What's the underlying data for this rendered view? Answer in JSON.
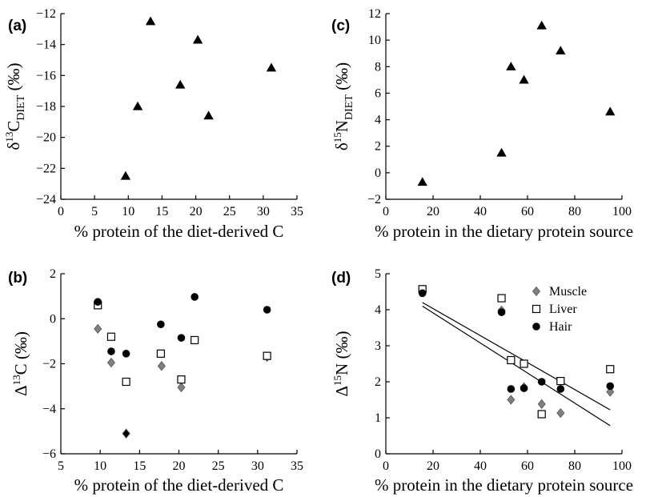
{
  "chart_data": [
    {
      "panel": "(a)",
      "type": "scatter",
      "xlabel": "% protein of the diet-derived C",
      "ylabel_parts": [
        "δ",
        "13",
        "C",
        "DIET",
        " (‰)"
      ],
      "xlim": [
        0,
        35
      ],
      "ylim": [
        -24,
        -12
      ],
      "xticks": [
        0,
        5,
        10,
        15,
        20,
        25,
        30,
        35
      ],
      "yticks": [
        -24,
        -22,
        -20,
        -18,
        -16,
        -14,
        -12
      ],
      "series": [
        {
          "marker": "triangle",
          "color": "#000000",
          "points": [
            [
              9.6,
              -22.5
            ],
            [
              11.4,
              -18.0
            ],
            [
              13.3,
              -12.5
            ],
            [
              17.7,
              -16.6
            ],
            [
              20.3,
              -13.7
            ],
            [
              21.9,
              -18.6
            ],
            [
              31.2,
              -15.5
            ]
          ]
        }
      ]
    },
    {
      "panel": "(b)",
      "type": "scatter",
      "xlabel": "% protein of the diet-derived C",
      "ylabel_parts": [
        "Δ",
        "13",
        "C",
        "",
        " (‰)"
      ],
      "xlim": [
        5,
        35
      ],
      "ylim": [
        -6,
        2
      ],
      "xticks": [
        5,
        10,
        15,
        20,
        25,
        30,
        35
      ],
      "yticks": [
        -6,
        -4,
        -2,
        0,
        2
      ],
      "series": [
        {
          "marker": "diamond",
          "color": "#808080",
          "points": [
            [
              9.7,
              -0.45
            ],
            [
              11.4,
              -1.95
            ],
            [
              17.8,
              -2.1
            ],
            [
              20.3,
              -3.05
            ],
            [
              13.3,
              -5.1
            ],
            [
              31.2,
              -1.7
            ]
          ]
        },
        {
          "marker": "square",
          "points": [
            [
              9.7,
              0.6
            ],
            [
              11.4,
              -0.8
            ],
            [
              13.3,
              -2.8
            ],
            [
              17.7,
              -1.55
            ],
            [
              20.3,
              -2.7
            ],
            [
              22.0,
              -0.95
            ],
            [
              31.2,
              -1.65
            ]
          ]
        },
        {
          "marker": "circle",
          "color": "#000000",
          "points": [
            [
              9.7,
              0.75
            ],
            [
              11.4,
              -1.45
            ],
            [
              13.3,
              -1.55
            ],
            [
              17.7,
              -0.25
            ],
            [
              20.3,
              -0.85
            ],
            [
              22.0,
              0.97
            ],
            [
              31.2,
              0.4
            ]
          ]
        }
      ],
      "extra_points": [
        {
          "marker": "diamond",
          "color": "#000000",
          "x": 13.3,
          "y": -5.1
        }
      ]
    },
    {
      "panel": "(c)",
      "type": "scatter",
      "xlabel": "% protein in the dietary protein source",
      "ylabel_parts": [
        "δ",
        "15",
        "N",
        "DIET",
        " (‰)"
      ],
      "xlim": [
        0,
        100
      ],
      "ylim": [
        -2,
        12
      ],
      "xticks": [
        0,
        20,
        40,
        60,
        80,
        100
      ],
      "yticks": [
        -2,
        0,
        2,
        4,
        6,
        8,
        10,
        12
      ],
      "series": [
        {
          "marker": "triangle",
          "color": "#000000",
          "points": [
            [
              15.5,
              -0.7
            ],
            [
              49.0,
              1.5
            ],
            [
              53.0,
              8.0
            ],
            [
              58.5,
              7.0
            ],
            [
              66.0,
              11.1
            ],
            [
              74.0,
              9.2
            ],
            [
              95.0,
              4.6
            ]
          ]
        }
      ]
    },
    {
      "panel": "(d)",
      "type": "scatter",
      "xlabel": "% protein in the dietary protein source",
      "ylabel_parts": [
        "Δ",
        "15",
        "N",
        "",
        " (‰)"
      ],
      "xlim": [
        0,
        100
      ],
      "ylim": [
        0,
        5
      ],
      "xticks": [
        0,
        20,
        40,
        60,
        80,
        100
      ],
      "yticks": [
        0,
        1,
        2,
        3,
        4,
        5
      ],
      "series": [
        {
          "name": "Muscle",
          "marker": "diamond",
          "color": "#808080",
          "points": [
            [
              15.5,
              4.52
            ],
            [
              49.0,
              3.98
            ],
            [
              53.0,
              1.5
            ],
            [
              58.5,
              1.85
            ],
            [
              66.0,
              1.38
            ],
            [
              74.0,
              1.13
            ],
            [
              95.0,
              1.72
            ]
          ]
        },
        {
          "name": "Liver",
          "marker": "square",
          "points": [
            [
              15.5,
              4.57
            ],
            [
              49.0,
              4.32
            ],
            [
              53.0,
              2.6
            ],
            [
              58.5,
              2.5
            ],
            [
              66.0,
              1.1
            ],
            [
              74.0,
              2.02
            ],
            [
              95.0,
              2.35
            ]
          ]
        },
        {
          "name": "Hair",
          "marker": "circle",
          "color": "#000000",
          "points": [
            [
              15.5,
              4.46
            ],
            [
              49.0,
              3.93
            ],
            [
              53.0,
              1.8
            ],
            [
              58.5,
              1.82
            ],
            [
              66.0,
              2.0
            ],
            [
              74.0,
              1.8
            ],
            [
              95.0,
              1.88
            ]
          ]
        }
      ],
      "trendlines": [
        {
          "x": [
            15.5,
            95.0
          ],
          "y": [
            4.2,
            1.22
          ]
        },
        {
          "x": [
            15.5,
            95.0
          ],
          "y": [
            4.1,
            0.78
          ]
        }
      ],
      "legend": {
        "position": "top-right"
      }
    }
  ]
}
